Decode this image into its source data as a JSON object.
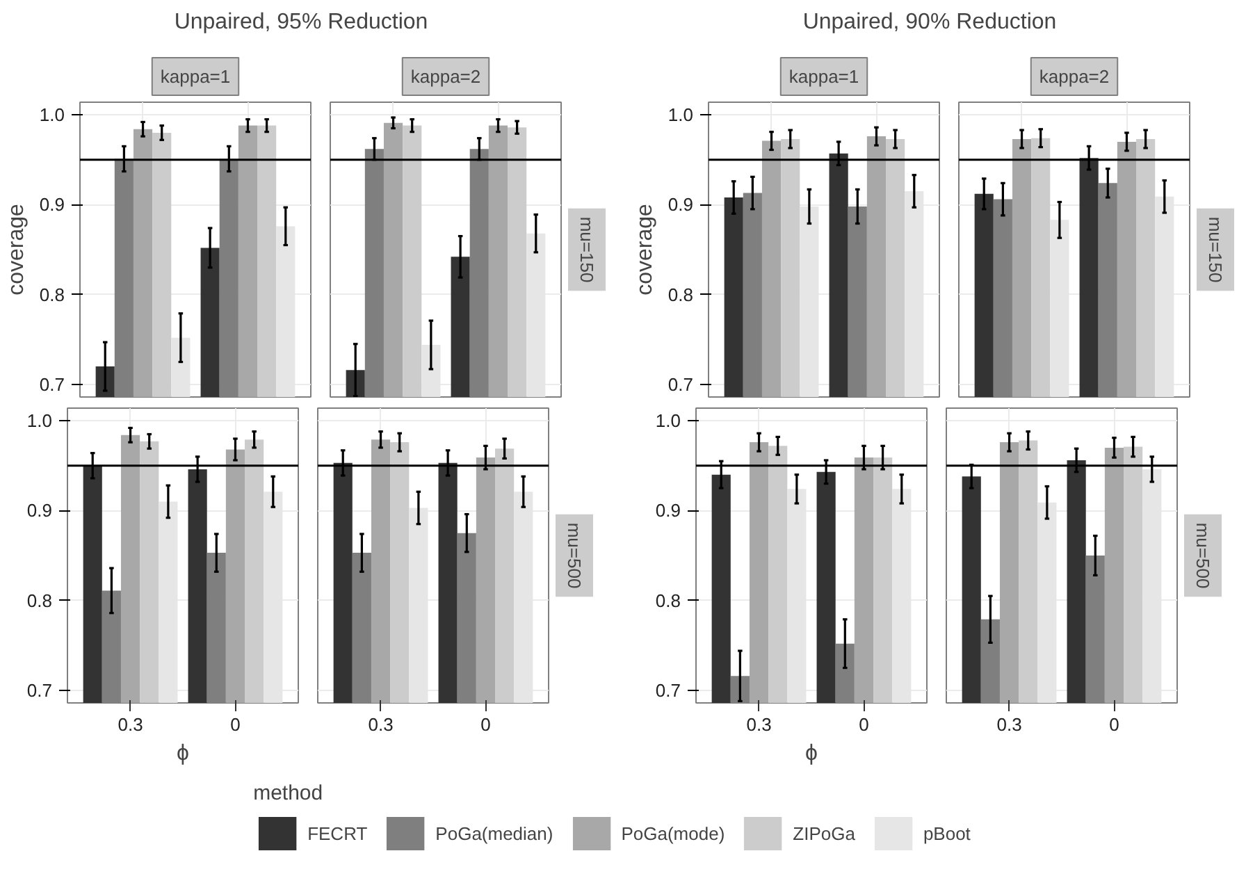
{
  "chart_data": [
    {
      "type": "bar",
      "title": "Unpaired, 95% Reduction",
      "subtitle": "kappa=1",
      "ylabel": "coverage",
      "categories": [
        "0.3",
        "0"
      ],
      "ylim": [
        0.686,
        1.014
      ],
      "yticks": [
        {
          "value": 0.7,
          "label": "0.7"
        },
        {
          "value": 0.8,
          "label": "0.8"
        },
        {
          "value": 0.9,
          "label": "0.9"
        },
        {
          "value": 1.0,
          "label": "1.0"
        }
      ],
      "grid": true,
      "tick_labels": "y",
      "ref_lines": [
        {
          "axis": "y",
          "value": 0.95
        }
      ],
      "series": [
        {
          "color": "#333333",
          "values": [
            0.72,
            0.852
          ],
          "errors": [
            0.027,
            0.022
          ]
        },
        {
          "color": "#7f7f7f",
          "values": [
            0.951,
            0.951
          ],
          "errors": [
            0.014,
            0.014
          ]
        },
        {
          "color": "#a8a8a8",
          "values": [
            0.984,
            0.988
          ],
          "errors": [
            0.008,
            0.007
          ]
        },
        {
          "color": "#cccccc",
          "values": [
            0.98,
            0.988
          ],
          "errors": [
            0.008,
            0.007
          ]
        },
        {
          "color": "#e6e6e6",
          "values": [
            0.752,
            0.876
          ],
          "errors": [
            0.027,
            0.021
          ]
        }
      ]
    },
    {
      "type": "bar",
      "subtitle": "kappa=2",
      "annotations": [
        "mu=150"
      ],
      "categories": [
        "0.3",
        "0"
      ],
      "ylim": [
        0.686,
        1.014
      ],
      "grid": true,
      "tick_labels": false,
      "ref_lines": [
        {
          "axis": "y",
          "value": 0.95
        }
      ],
      "series": [
        {
          "color": "#333333",
          "values": [
            0.716,
            0.842
          ],
          "errors": [
            0.029,
            0.023
          ]
        },
        {
          "color": "#7f7f7f",
          "values": [
            0.962,
            0.962
          ],
          "errors": [
            0.012,
            0.012
          ]
        },
        {
          "color": "#a8a8a8",
          "values": [
            0.991,
            0.988
          ],
          "errors": [
            0.006,
            0.007
          ]
        },
        {
          "color": "#cccccc",
          "values": [
            0.988,
            0.986
          ],
          "errors": [
            0.007,
            0.007
          ]
        },
        {
          "color": "#e6e6e6",
          "values": [
            0.744,
            0.868
          ],
          "errors": [
            0.027,
            0.021
          ]
        }
      ]
    },
    {
      "type": "bar",
      "xlabel": "ϕ",
      "categories": [
        "0.3",
        "0"
      ],
      "ylim": [
        0.686,
        1.014
      ],
      "yticks": [
        {
          "value": 0.7,
          "label": "0.7"
        },
        {
          "value": 0.8,
          "label": "0.8"
        },
        {
          "value": 0.9,
          "label": "0.9"
        },
        {
          "value": 1.0,
          "label": "1.0"
        }
      ],
      "grid": true,
      "ref_lines": [
        {
          "axis": "y",
          "value": 0.95
        }
      ],
      "series": [
        {
          "color": "#333333",
          "values": [
            0.95,
            0.946
          ],
          "errors": [
            0.014,
            0.014
          ]
        },
        {
          "color": "#7f7f7f",
          "values": [
            0.811,
            0.853
          ],
          "errors": [
            0.025,
            0.021
          ]
        },
        {
          "color": "#a8a8a8",
          "values": [
            0.984,
            0.968
          ],
          "errors": [
            0.008,
            0.012
          ]
        },
        {
          "color": "#cccccc",
          "values": [
            0.977,
            0.979
          ],
          "errors": [
            0.008,
            0.009
          ]
        },
        {
          "color": "#e6e6e6",
          "values": [
            0.91,
            0.921
          ],
          "errors": [
            0.018,
            0.017
          ]
        }
      ]
    },
    {
      "type": "bar",
      "annotations": [
        "mu=500"
      ],
      "categories": [
        "0.3",
        "0"
      ],
      "ylim": [
        0.686,
        1.014
      ],
      "grid": true,
      "tick_labels": "x",
      "ref_lines": [
        {
          "axis": "y",
          "value": 0.95
        }
      ],
      "series": [
        {
          "color": "#333333",
          "values": [
            0.953,
            0.953
          ],
          "errors": [
            0.014,
            0.014
          ]
        },
        {
          "color": "#7f7f7f",
          "values": [
            0.853,
            0.875
          ],
          "errors": [
            0.021,
            0.021
          ]
        },
        {
          "color": "#a8a8a8",
          "values": [
            0.979,
            0.959
          ],
          "errors": [
            0.009,
            0.013
          ]
        },
        {
          "color": "#cccccc",
          "values": [
            0.976,
            0.969
          ],
          "errors": [
            0.01,
            0.011
          ]
        },
        {
          "color": "#e6e6e6",
          "values": [
            0.903,
            0.921
          ],
          "errors": [
            0.018,
            0.017
          ]
        }
      ]
    },
    {
      "type": "bar",
      "title": "Unpaired, 90% Reduction",
      "subtitle": "kappa=1",
      "ylabel": "coverage",
      "categories": [
        "0.3",
        "0"
      ],
      "ylim": [
        0.686,
        1.014
      ],
      "yticks": [
        {
          "value": 0.7,
          "label": "0.7"
        },
        {
          "value": 0.8,
          "label": "0.8"
        },
        {
          "value": 0.9,
          "label": "0.9"
        },
        {
          "value": 1.0,
          "label": "1.0"
        }
      ],
      "grid": true,
      "tick_labels": "y",
      "ref_lines": [
        {
          "axis": "y",
          "value": 0.95
        }
      ],
      "series": [
        {
          "color": "#333333",
          "values": [
            0.908,
            0.957
          ],
          "errors": [
            0.018,
            0.013
          ]
        },
        {
          "color": "#7f7f7f",
          "values": [
            0.913,
            0.898
          ],
          "errors": [
            0.018,
            0.019
          ]
        },
        {
          "color": "#a8a8a8",
          "values": [
            0.971,
            0.976
          ],
          "errors": [
            0.01,
            0.01
          ]
        },
        {
          "color": "#cccccc",
          "values": [
            0.973,
            0.973
          ],
          "errors": [
            0.01,
            0.01
          ]
        },
        {
          "color": "#e6e6e6",
          "values": [
            0.898,
            0.915
          ],
          "errors": [
            0.019,
            0.018
          ]
        }
      ]
    },
    {
      "type": "bar",
      "subtitle": "kappa=2",
      "annotations": [
        "mu=150"
      ],
      "categories": [
        "0.3",
        "0"
      ],
      "ylim": [
        0.686,
        1.014
      ],
      "grid": true,
      "tick_labels": false,
      "ref_lines": [
        {
          "axis": "y",
          "value": 0.95
        }
      ],
      "series": [
        {
          "color": "#333333",
          "values": [
            0.912,
            0.952
          ],
          "errors": [
            0.017,
            0.013
          ]
        },
        {
          "color": "#7f7f7f",
          "values": [
            0.906,
            0.924
          ],
          "errors": [
            0.018,
            0.016
          ]
        },
        {
          "color": "#a8a8a8",
          "values": [
            0.973,
            0.97
          ],
          "errors": [
            0.01,
            0.01
          ]
        },
        {
          "color": "#cccccc",
          "values": [
            0.974,
            0.973
          ],
          "errors": [
            0.01,
            0.01
          ]
        },
        {
          "color": "#e6e6e6",
          "values": [
            0.883,
            0.909
          ],
          "errors": [
            0.02,
            0.018
          ]
        }
      ]
    },
    {
      "type": "bar",
      "xlabel": "ϕ",
      "categories": [
        "0.3",
        "0"
      ],
      "ylim": [
        0.686,
        1.014
      ],
      "yticks": [
        {
          "value": 0.7,
          "label": "0.7"
        },
        {
          "value": 0.8,
          "label": "0.8"
        },
        {
          "value": 0.9,
          "label": "0.9"
        },
        {
          "value": 1.0,
          "label": "1.0"
        }
      ],
      "grid": true,
      "ref_lines": [
        {
          "axis": "y",
          "value": 0.95
        }
      ],
      "series": [
        {
          "color": "#333333",
          "values": [
            0.94,
            0.943
          ],
          "errors": [
            0.015,
            0.013
          ]
        },
        {
          "color": "#7f7f7f",
          "values": [
            0.716,
            0.752
          ],
          "errors": [
            0.028,
            0.027
          ]
        },
        {
          "color": "#a8a8a8",
          "values": [
            0.976,
            0.959
          ],
          "errors": [
            0.01,
            0.013
          ]
        },
        {
          "color": "#cccccc",
          "values": [
            0.972,
            0.959
          ],
          "errors": [
            0.01,
            0.013
          ]
        },
        {
          "color": "#e6e6e6",
          "values": [
            0.924,
            0.924
          ],
          "errors": [
            0.016,
            0.016
          ]
        }
      ]
    },
    {
      "type": "bar",
      "annotations": [
        "mu=500"
      ],
      "categories": [
        "0.3",
        "0"
      ],
      "ylim": [
        0.686,
        1.014
      ],
      "grid": true,
      "tick_labels": "x",
      "ref_lines": [
        {
          "axis": "y",
          "value": 0.95
        }
      ],
      "legend": "bottom",
      "legend_title": "method",
      "series": [
        {
          "name": "FECRT",
          "color": "#333333",
          "values": [
            0.938,
            0.956
          ],
          "errors": [
            0.013,
            0.013
          ]
        },
        {
          "name": "PoGa(median)",
          "color": "#7f7f7f",
          "values": [
            0.779,
            0.85
          ],
          "errors": [
            0.026,
            0.022
          ]
        },
        {
          "name": "PoGa(mode)",
          "color": "#a8a8a8",
          "values": [
            0.976,
            0.97
          ],
          "errors": [
            0.01,
            0.011
          ]
        },
        {
          "name": "ZIPoGa",
          "color": "#cccccc",
          "values": [
            0.978,
            0.971
          ],
          "errors": [
            0.01,
            0.011
          ]
        },
        {
          "name": "pBoot",
          "color": "#e6e6e6",
          "values": [
            0.909,
            0.946
          ],
          "errors": [
            0.018,
            0.014
          ]
        }
      ]
    }
  ]
}
